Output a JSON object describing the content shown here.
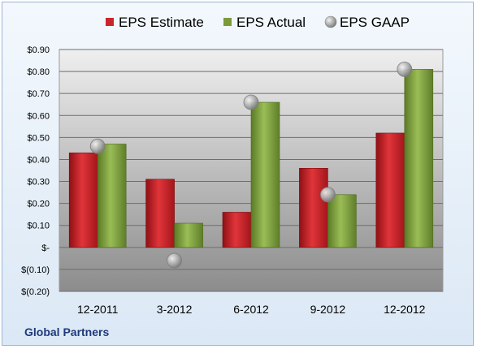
{
  "company": "Global Partners",
  "colors": {
    "estimate": "#c8262c",
    "actual": "#7c9a3a",
    "gaap": "#a8a8a8"
  },
  "chart_data": {
    "type": "bar",
    "title": "",
    "xlabel": "",
    "ylabel": "",
    "categories": [
      "12-2011",
      "3-2012",
      "6-2012",
      "9-2012",
      "12-2012"
    ],
    "series": [
      {
        "name": "EPS Estimate",
        "values": [
          0.43,
          0.31,
          0.16,
          0.36,
          0.52
        ]
      },
      {
        "name": "EPS Actual",
        "values": [
          0.47,
          0.11,
          0.66,
          0.24,
          0.81
        ]
      },
      {
        "name": "EPS GAAP",
        "style": "scatter",
        "values": [
          0.46,
          -0.06,
          0.66,
          0.24,
          0.81
        ]
      }
    ],
    "ylim": [
      -0.2,
      0.9
    ],
    "yticks": [
      0.9,
      0.8,
      0.7,
      0.6,
      0.5,
      0.4,
      0.3,
      0.2,
      0.1,
      0,
      -0.1,
      -0.2
    ],
    "ytick_labels": [
      "$0.90",
      "$0.80",
      "$0.70",
      "$0.60",
      "$0.50",
      "$0.40",
      "$0.30",
      "$0.20",
      "$0.10",
      "$-",
      "$(0.10)",
      "$(0.20)"
    ],
    "grid": true,
    "legend": "top"
  }
}
